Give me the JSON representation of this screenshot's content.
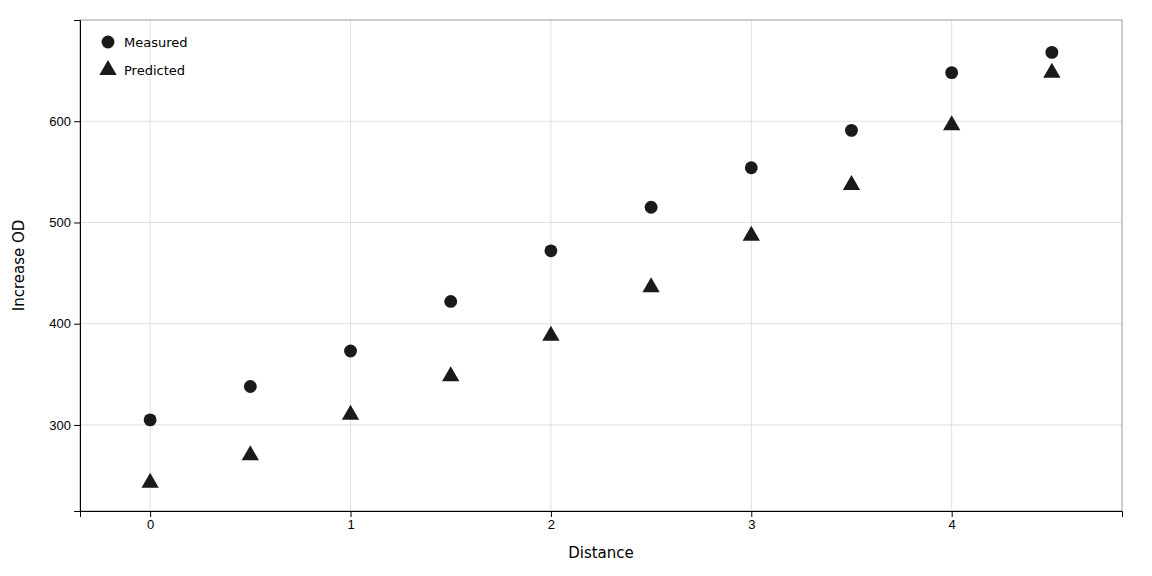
{
  "chart_data": {
    "type": "scatter",
    "xlabel": "Distance",
    "ylabel": "Increase OD",
    "series": [
      {
        "name": "Measured",
        "color": "#1a1a1a",
        "marker": "circle",
        "x": [
          0,
          0.5,
          1,
          1.5,
          2,
          2.5,
          3,
          3.5,
          4,
          4.5
        ],
        "values": [
          305,
          338,
          373,
          422,
          472,
          515,
          554,
          591,
          648,
          668
        ]
      },
      {
        "name": "Predicted",
        "color": "#1a1a1a",
        "marker": "triangle",
        "x": [
          0,
          0.5,
          1,
          1.5,
          2,
          2.5,
          3,
          3.5,
          4,
          4.5
        ],
        "values": [
          243,
          270,
          310,
          348,
          388,
          436,
          487,
          537,
          596,
          648
        ]
      }
    ],
    "xlim": [
      -0.35,
      4.85
    ],
    "ylim": [
      215,
      700
    ],
    "xticks": [
      0,
      1,
      2,
      3,
      4
    ],
    "yticks": [
      300,
      400,
      500,
      600
    ],
    "grid": true,
    "legend": "upper left"
  }
}
